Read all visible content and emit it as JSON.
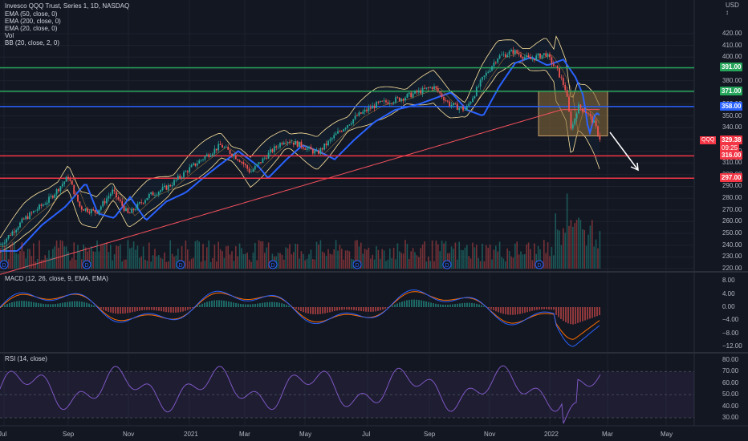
{
  "header": {
    "title": "Invesco QQQ Trust, Series 1, 1D, NASDAQ",
    "indicators": [
      "EMA (50, close, 0)",
      "EMA (200, close, 0)",
      "EMA (20, close, 0)",
      "Vol",
      "BB (20, close, 2, 0)"
    ]
  },
  "price_axis": {
    "currency_top": "USD",
    "currency_bottom": "↕",
    "ticks": [
      "420.00",
      "410.00",
      "400.00",
      "390.00",
      "380.00",
      "370.00",
      "360.00",
      "350.00",
      "340.00",
      "330.00",
      "320.00",
      "310.00",
      "300.00",
      "290.00",
      "280.00",
      "270.00",
      "260.00",
      "250.00",
      "240.00",
      "230.00",
      "220.00"
    ]
  },
  "levels": [
    {
      "label": "391.00",
      "value": 391,
      "color": "#26a65b",
      "tag_text_dark": true
    },
    {
      "label": "371.00",
      "value": 371,
      "color": "#26a65b",
      "tag_text_dark": true
    },
    {
      "label": "358.00",
      "value": 358,
      "color": "#2962ff",
      "tag_text_dark": false
    },
    {
      "label": "316.00",
      "value": 316,
      "color": "#f23645",
      "tag_text_dark": false
    },
    {
      "label": "297.00",
      "value": 297,
      "color": "#f23645",
      "tag_text_dark": false
    }
  ],
  "last_price": {
    "symbol": "QQQ",
    "price": "329.38",
    "countdown": "09:25",
    "color": "#f23645"
  },
  "macd": {
    "label": "MACD (12, 26, close, 9, EMA, EMA)",
    "ticks": [
      "8.00",
      "4.00",
      "0.00",
      "−4.00",
      "−8.00",
      "−12.00"
    ]
  },
  "rsi": {
    "label": "RSI (14, close)",
    "ticks": [
      "80.00",
      "70.00",
      "60.00",
      "50.00",
      "40.00",
      "30.00"
    ]
  },
  "time_axis": [
    "Jul",
    "Sep",
    "Nov",
    "2021",
    "Mar",
    "May",
    "Jul",
    "Sep",
    "Nov",
    "2022",
    "Mar",
    "May"
  ],
  "dividend_marker": "D",
  "colors": {
    "background": "#131722",
    "up": "#26a69a",
    "down": "#ef5350",
    "ema50": "#2962ff",
    "ema200": "#f7525f",
    "ema20": "#e8a24a",
    "bb": "#ffe59e",
    "macd": "#2962ff",
    "signal": "#ff6d00",
    "rsi": "#7e57c2",
    "box": "#8d6e3a"
  }
}
